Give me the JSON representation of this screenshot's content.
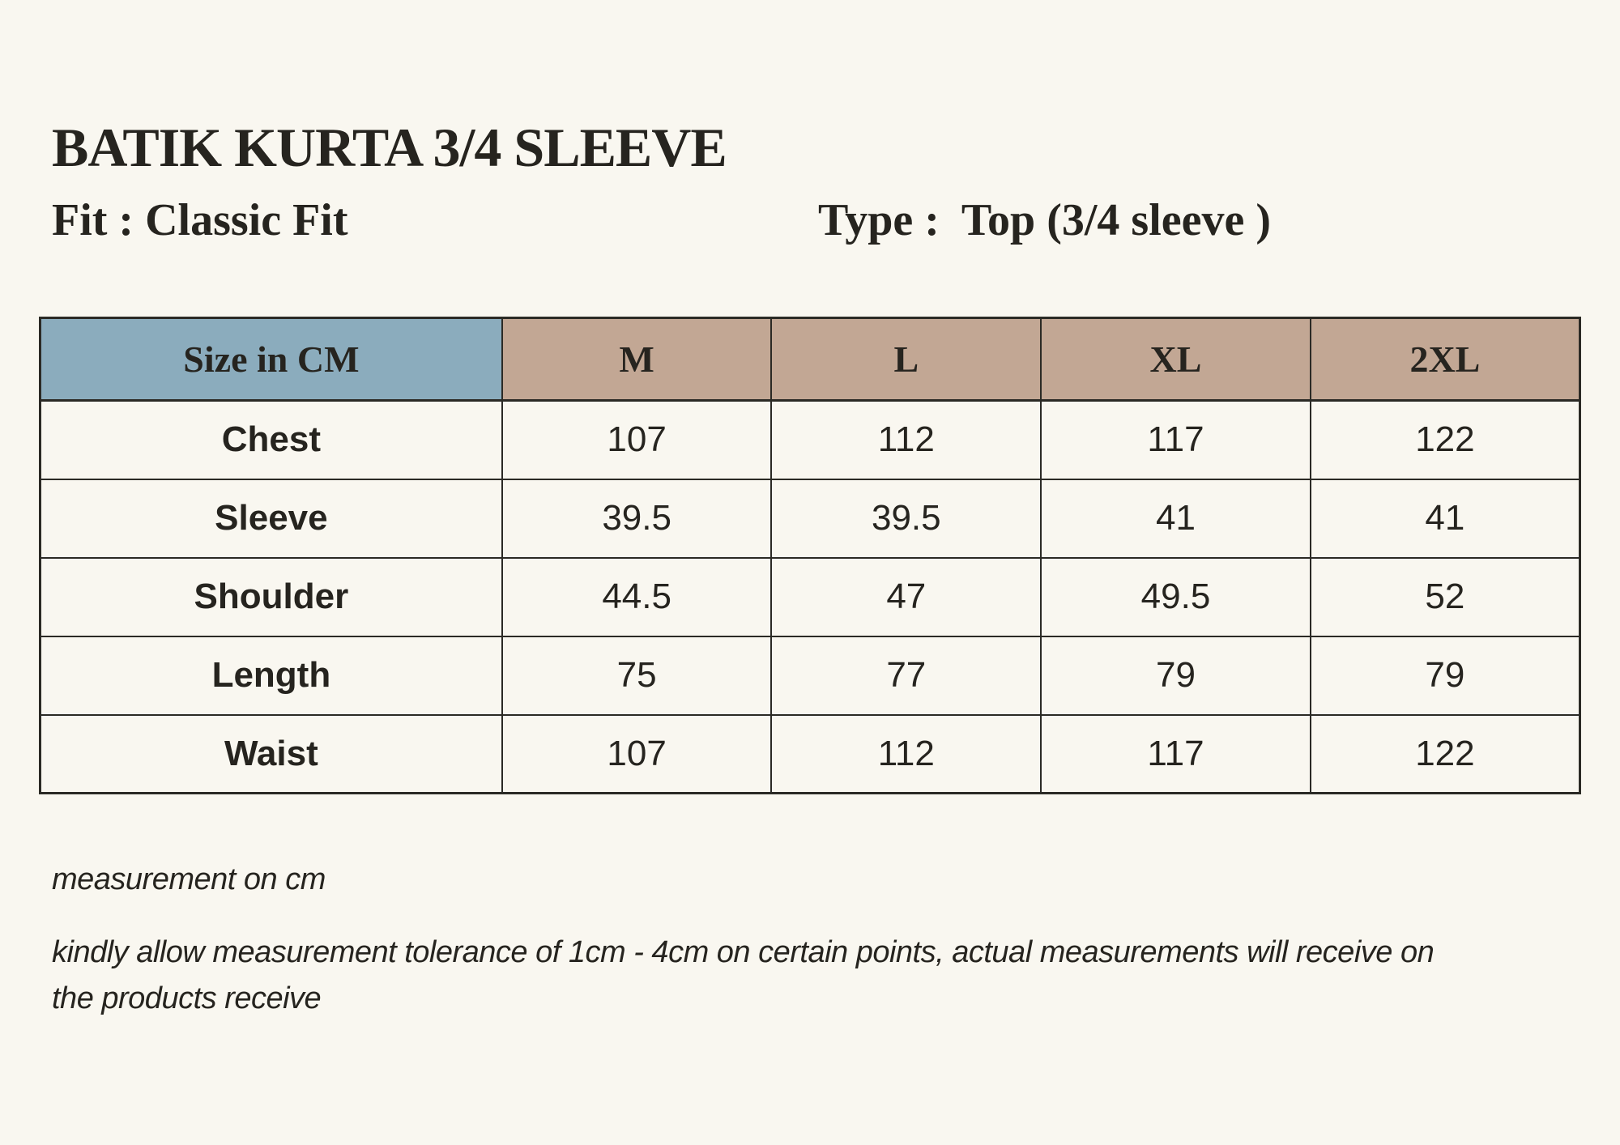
{
  "colors": {
    "background": "#F9F7F0",
    "text": "#26241F",
    "border": "#2B2A25",
    "size-col-bg": "#8BACBD",
    "sizes-bg": "#C2A794"
  },
  "header": {
    "title": "BATIK KURTA 3/4 SLEEVE",
    "fit_label": "Fit : Classic Fit",
    "type_label": "Type :  Top (3/4 sleeve )"
  },
  "table": {
    "header": {
      "size_col": "Size in CM",
      "sizes": [
        "M",
        "L",
        "XL",
        "2XL"
      ]
    },
    "rows": [
      {
        "label": "Chest",
        "values": [
          "107",
          "112",
          "117",
          "122"
        ]
      },
      {
        "label": "Sleeve",
        "values": [
          "39.5",
          "39.5",
          "41",
          "41"
        ]
      },
      {
        "label": "Shoulder",
        "values": [
          "44.5",
          "47",
          "49.5",
          "52"
        ]
      },
      {
        "label": "Length",
        "values": [
          "75",
          "77",
          "79",
          "79"
        ]
      },
      {
        "label": "Waist",
        "values": [
          "107",
          "112",
          "117",
          "122"
        ]
      }
    ]
  },
  "notes": {
    "unit_note": "measurement on cm",
    "tolerance_note": "kindly allow measurement tolerance of 1cm - 4cm on certain points, actual measurements will receive on the products receive"
  }
}
